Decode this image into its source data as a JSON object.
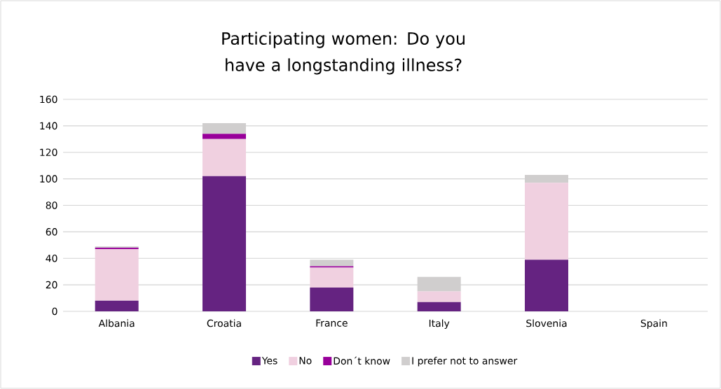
{
  "chart_data": {
    "type": "bar",
    "stacked": true,
    "title": "Participating women: Do you have a longstanding illness?",
    "categories": [
      "Albania",
      "Croatia",
      "France",
      "Italy",
      "Slovenia",
      "Spain"
    ],
    "series": [
      {
        "name": "Yes",
        "color": "#652381",
        "values": [
          8,
          102,
          18,
          7,
          39,
          0
        ]
      },
      {
        "name": "No",
        "color": "#f0d0e0",
        "values": [
          39,
          28,
          15,
          8,
          58,
          0
        ]
      },
      {
        "name": "Don´t know",
        "color": "#98009a",
        "values": [
          1,
          4,
          1,
          0,
          0,
          0
        ]
      },
      {
        "name": "I prefer not to answer",
        "color": "#d0cece",
        "values": [
          1,
          8,
          5,
          11,
          6,
          0
        ]
      }
    ],
    "ylim": [
      0,
      160
    ],
    "yticks": [
      0,
      20,
      40,
      60,
      80,
      100,
      120,
      140,
      160
    ],
    "grid": "y",
    "legend": "bottom"
  }
}
